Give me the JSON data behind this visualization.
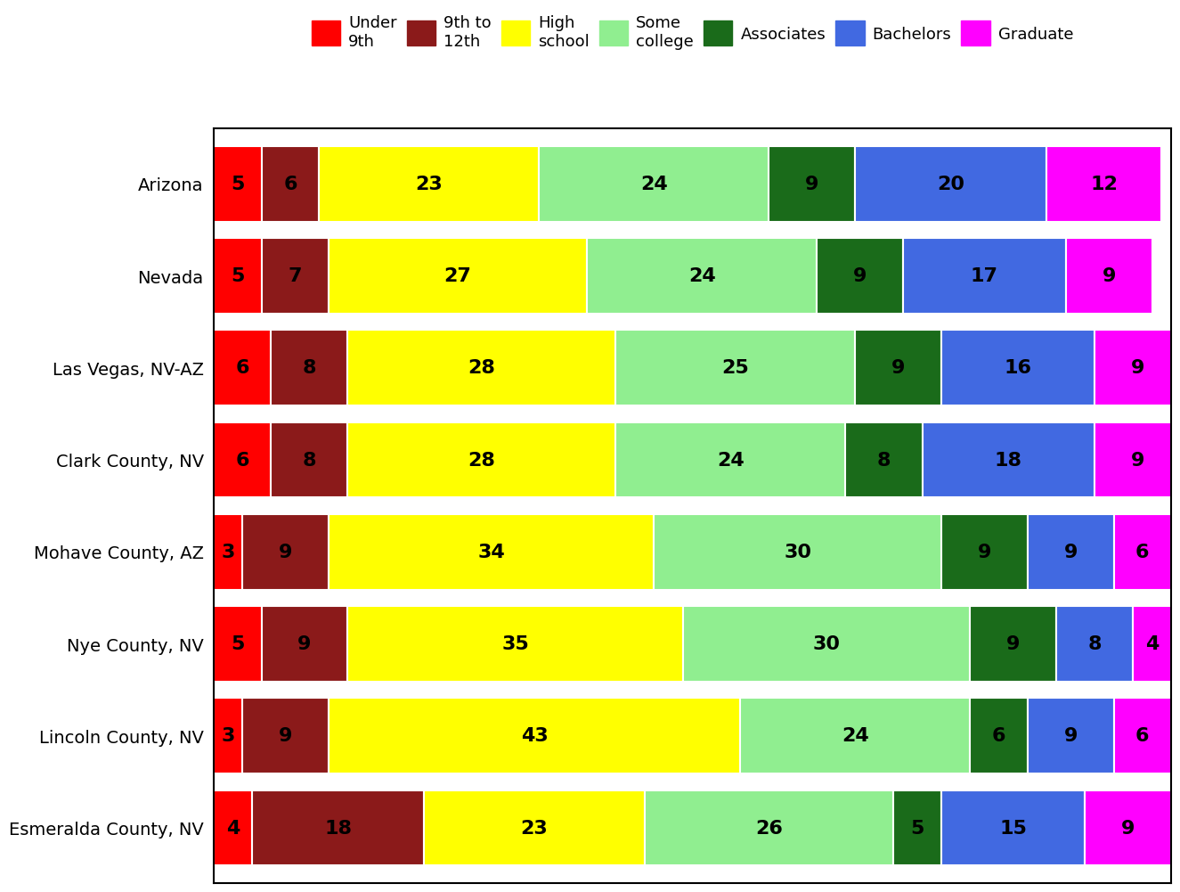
{
  "categories": [
    "Arizona",
    "Nevada",
    "Las Vegas, NV-AZ",
    "Clark County, NV",
    "Mohave County, AZ",
    "Nye County, NV",
    "Lincoln County, NV",
    "Esmeralda County, NV"
  ],
  "segments": [
    {
      "label": "Under\n9th",
      "color": "#ff0000"
    },
    {
      "label": "9th to\n12th",
      "color": "#8b1a1a"
    },
    {
      "label": "High\nschool",
      "color": "#ffff00"
    },
    {
      "label": "Some\ncollege",
      "color": "#90ee90"
    },
    {
      "label": "Associates",
      "color": "#1a6b1a"
    },
    {
      "label": "Bachelors",
      "color": "#4169e1"
    },
    {
      "label": "Graduate",
      "color": "#ff00ff"
    }
  ],
  "values": [
    [
      5,
      6,
      23,
      24,
      9,
      20,
      12
    ],
    [
      5,
      7,
      27,
      24,
      9,
      17,
      9
    ],
    [
      6,
      8,
      28,
      25,
      9,
      16,
      9
    ],
    [
      6,
      8,
      28,
      24,
      8,
      18,
      9
    ],
    [
      3,
      9,
      34,
      30,
      9,
      9,
      6
    ],
    [
      5,
      9,
      35,
      30,
      9,
      8,
      4
    ],
    [
      3,
      9,
      43,
      24,
      6,
      9,
      6
    ],
    [
      4,
      18,
      23,
      26,
      5,
      15,
      9
    ]
  ],
  "figsize": [
    13.44,
    10.08
  ],
  "dpi": 100,
  "bar_height": 0.82,
  "text_fontsize": 16,
  "legend_fontsize": 13,
  "tick_fontsize": 14,
  "background_color": "#ffffff",
  "grid_color": "#d3d3d3"
}
